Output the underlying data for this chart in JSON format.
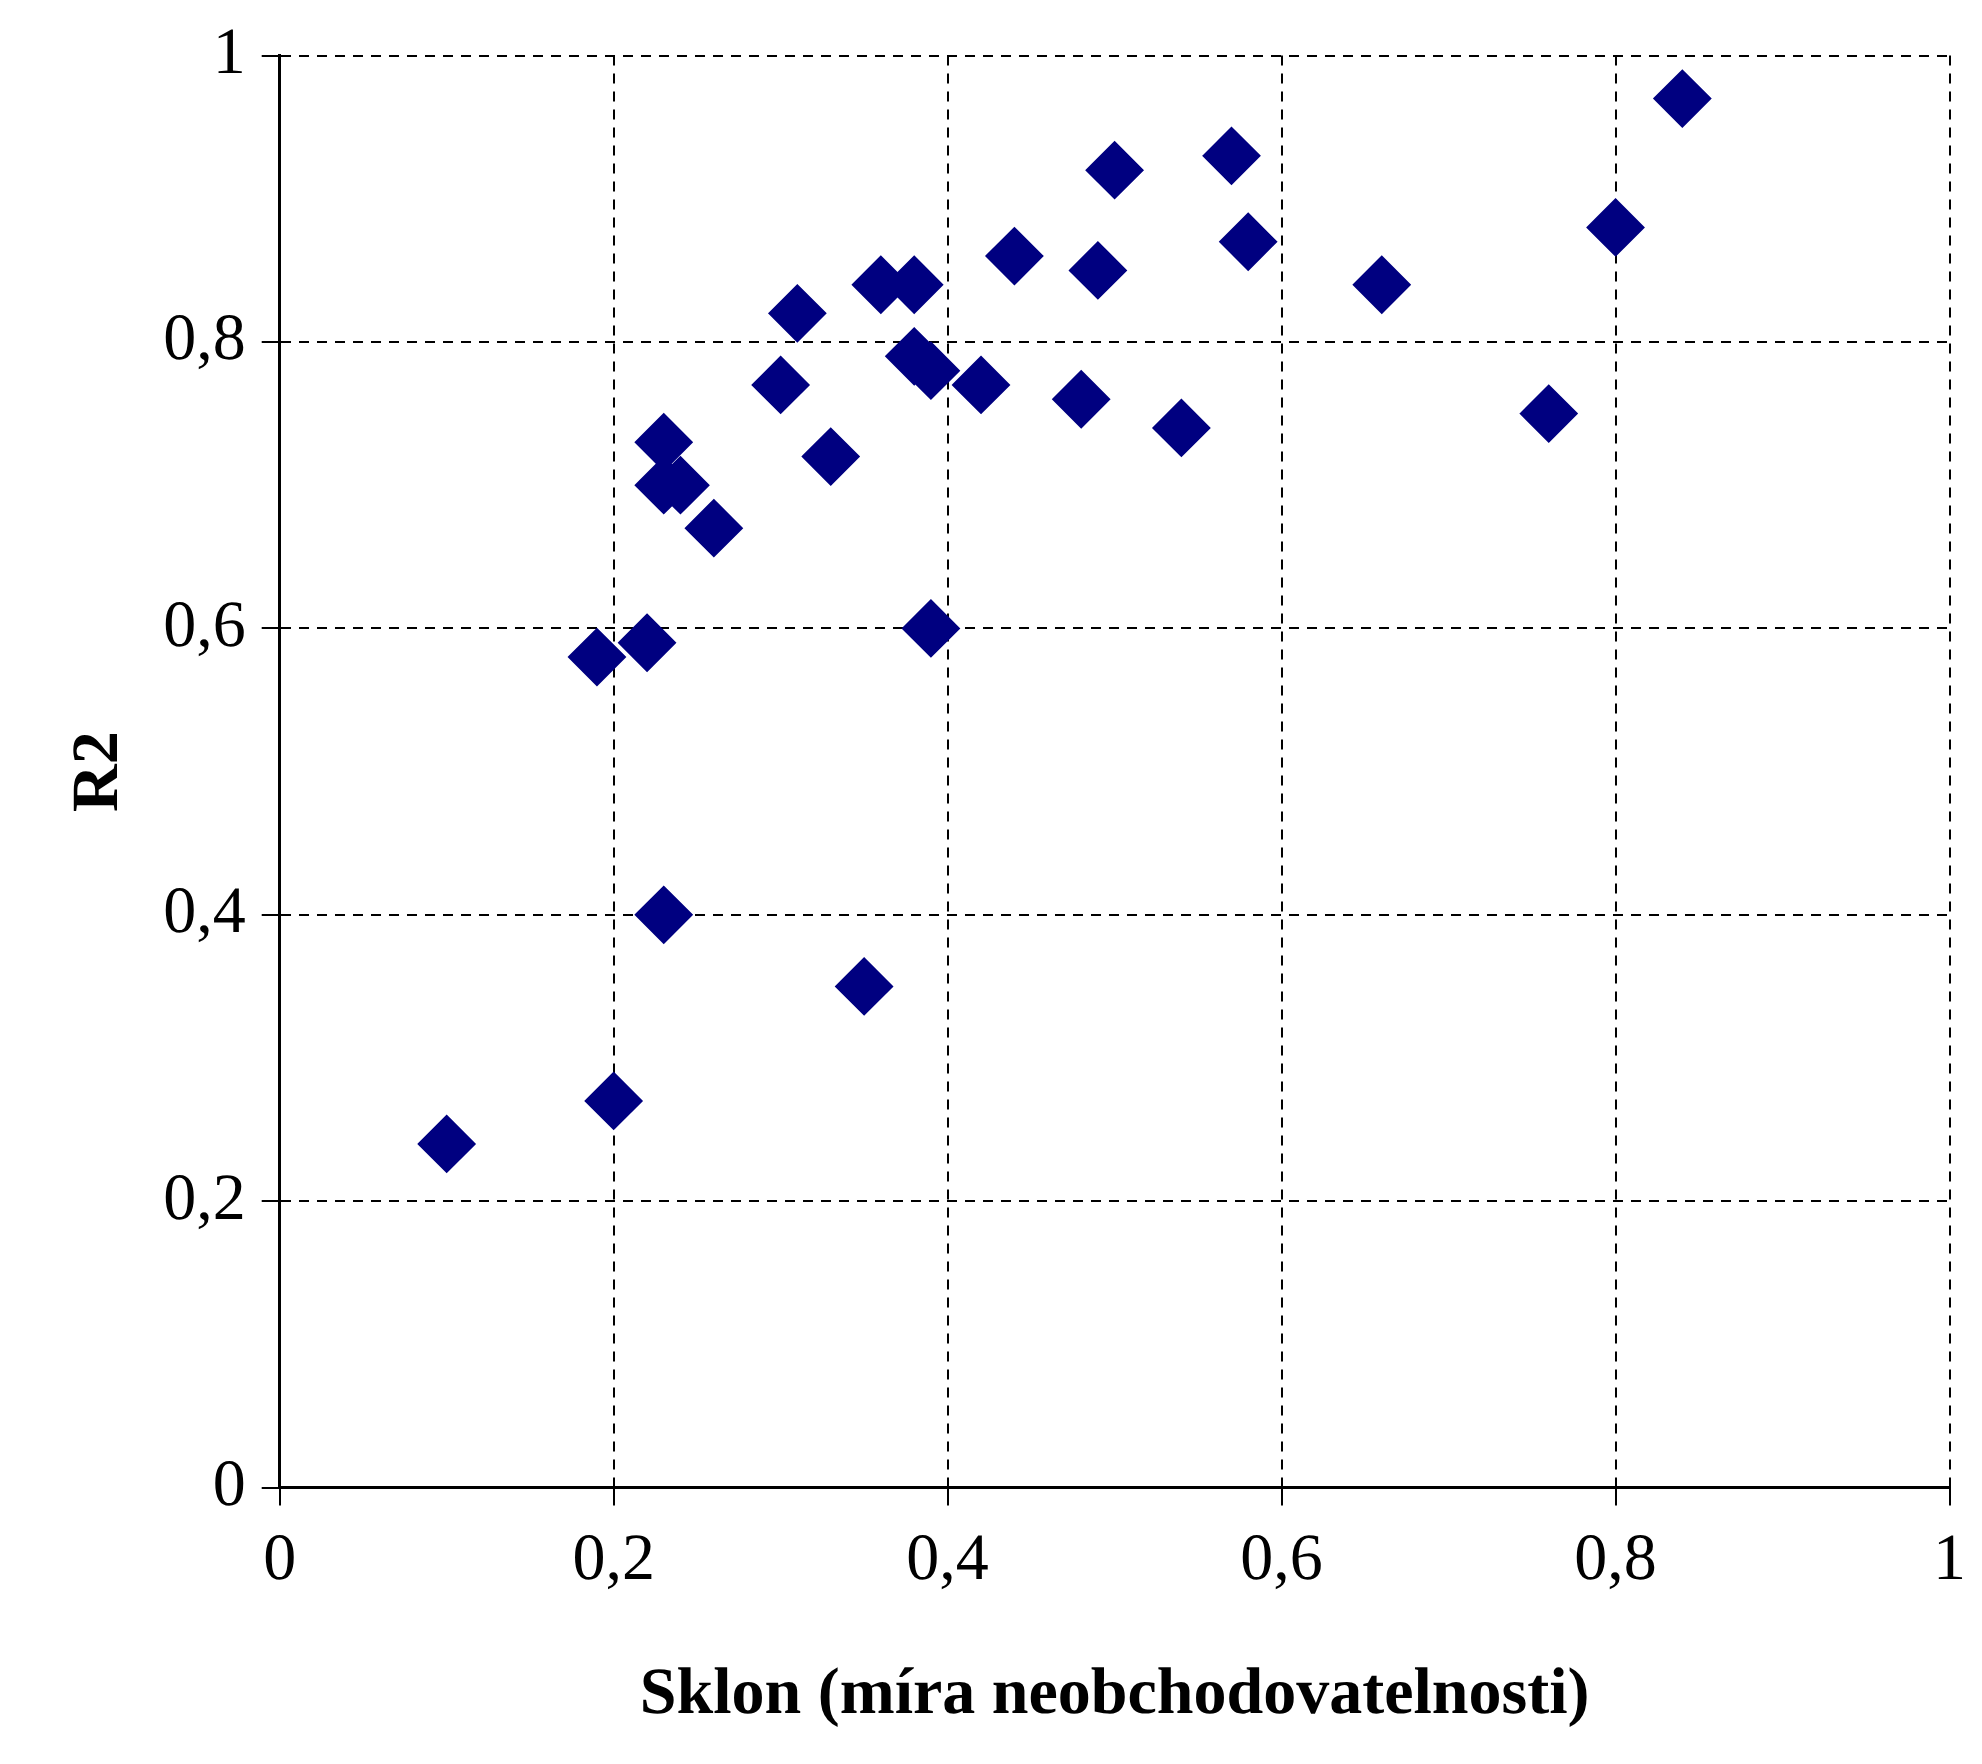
{
  "chart_data": {
    "type": "scatter",
    "xlabel": "Sklon (míra neobchodovatelnosti)",
    "ylabel": "R2",
    "marker": "diamond",
    "grid": true,
    "legend": false,
    "xlim": [
      0,
      1
    ],
    "ylim": [
      0,
      1
    ],
    "xticks": [
      0,
      {
        "value": 0.2,
        "label": "0,2"
      },
      {
        "value": 0.4,
        "label": "0,4"
      },
      {
        "value": 0.6,
        "label": "0,6"
      },
      {
        "value": 0.8,
        "label": "0,8"
      },
      1
    ],
    "yticks": [
      0,
      {
        "value": 0.2,
        "label": "0,2"
      },
      {
        "value": 0.4,
        "label": "0,4"
      },
      {
        "value": 0.6,
        "label": "0,6"
      },
      {
        "value": 0.8,
        "label": "0,8"
      },
      1
    ],
    "series": [
      {
        "color": "#000080",
        "x": [
          0.1,
          0.2,
          0.23,
          0.35,
          0.19,
          0.22,
          0.23,
          0.23,
          0.24,
          0.26,
          0.3,
          0.31,
          0.33,
          0.36,
          0.38,
          0.38,
          0.39,
          0.39,
          0.42,
          0.44,
          0.48,
          0.49,
          0.5,
          0.54,
          0.57,
          0.58,
          0.66,
          0.76,
          0.8,
          0.84
        ],
        "values": [
          0.24,
          0.27,
          0.4,
          0.35,
          0.58,
          0.59,
          0.73,
          0.7,
          0.7,
          0.67,
          0.77,
          0.82,
          0.72,
          0.84,
          0.84,
          0.79,
          0.78,
          0.6,
          0.77,
          0.86,
          0.76,
          0.85,
          0.92,
          0.74,
          0.93,
          0.87,
          0.84,
          0.75,
          0.88,
          0.97
        ]
      }
    ]
  }
}
